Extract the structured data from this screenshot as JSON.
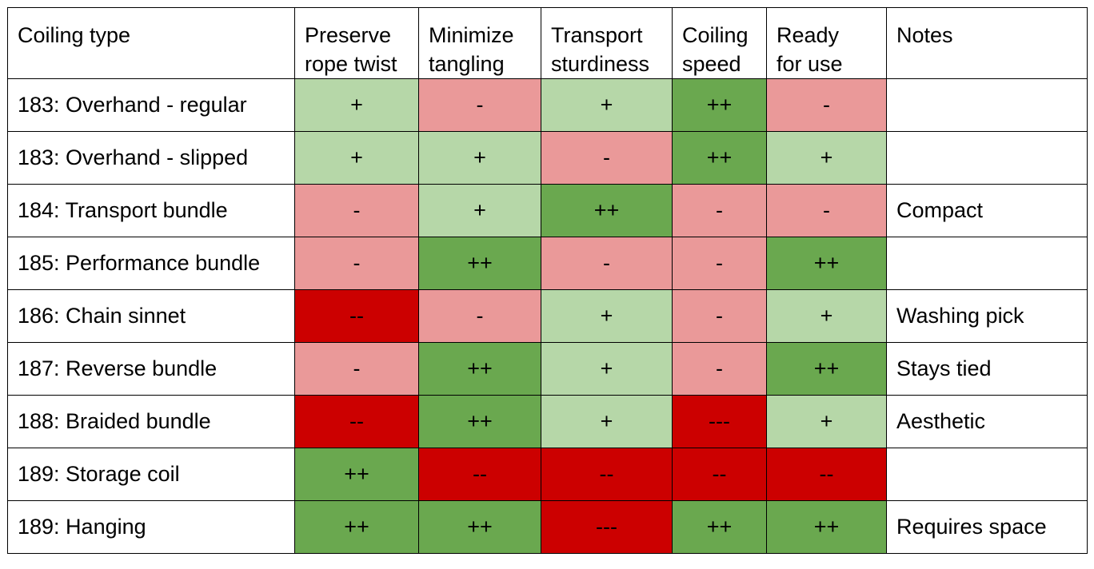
{
  "colors": {
    "++": "#6aa84f",
    "+": "#b6d7a8",
    "-": "#ea9999",
    "--": "#cc0000",
    "---": "#cc0000"
  },
  "columns": [
    "Coiling type",
    "Preserve rope twist",
    "Minimize tangling",
    "Transport sturdiness",
    "Coiling speed",
    "Ready for use",
    "Notes"
  ],
  "rows": [
    {
      "type": "183: Overhand - regular",
      "ratings": [
        "+",
        "-",
        "+",
        "++",
        "-"
      ],
      "note": ""
    },
    {
      "type": "183: Overhand - slipped",
      "ratings": [
        "+",
        "+",
        "-",
        "++",
        "+"
      ],
      "note": ""
    },
    {
      "type": "184: Transport bundle",
      "ratings": [
        "-",
        "+",
        "++",
        "-",
        "-"
      ],
      "note": "Compact"
    },
    {
      "type": "185: Performance bundle",
      "ratings": [
        "-",
        "++",
        "-",
        "-",
        "++"
      ],
      "note": ""
    },
    {
      "type": "186: Chain sinnet",
      "ratings": [
        "--",
        "-",
        "+",
        "-",
        "+"
      ],
      "note": "Washing pick"
    },
    {
      "type": "187: Reverse bundle",
      "ratings": [
        "-",
        "++",
        "+",
        "-",
        "++"
      ],
      "note": "Stays tied"
    },
    {
      "type": "188: Braided bundle",
      "ratings": [
        "--",
        "++",
        "+",
        "---",
        "+"
      ],
      "note": "Aesthetic"
    },
    {
      "type": "189: Storage coil",
      "ratings": [
        "++",
        "--",
        "--",
        "--",
        "--"
      ],
      "note": ""
    },
    {
      "type": "189: Hanging",
      "ratings": [
        "++",
        "++",
        "---",
        "++",
        "++"
      ],
      "note": "Requires space"
    }
  ]
}
